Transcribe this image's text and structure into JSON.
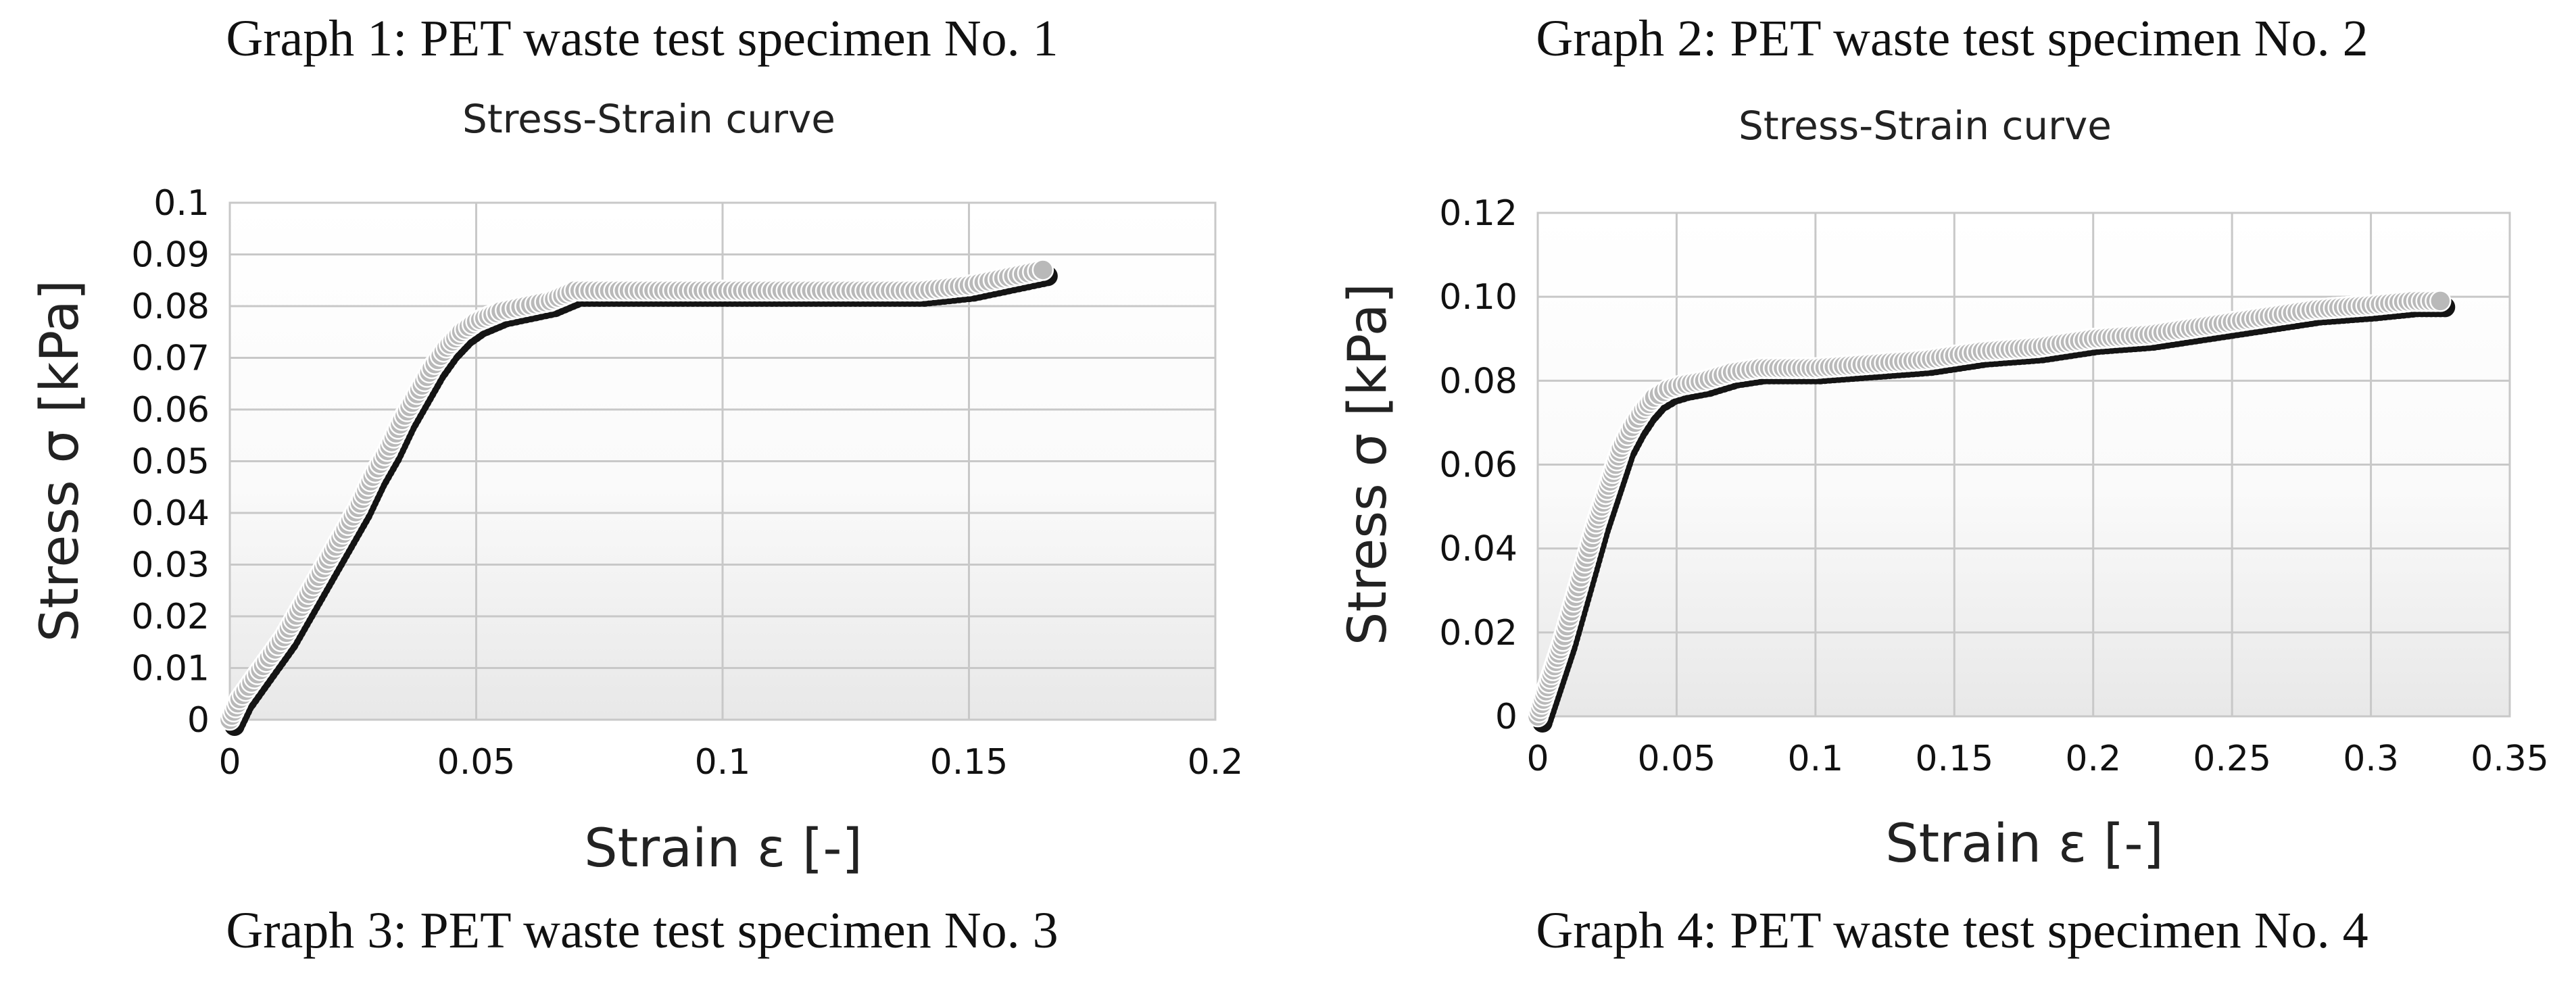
{
  "captions": {
    "graph1": "Graph 1: PET waste test specimen No. 1",
    "graph2": "Graph 2: PET waste test specimen No. 2",
    "graph3": "Graph 3: PET waste test specimen No. 3",
    "graph4": "Graph 4: PET waste test specimen No. 4"
  },
  "chart_data": [
    {
      "type": "scatter",
      "title": "Stress-Strain curve",
      "xlabel": "Strain ε [-]",
      "ylabel": "Stress σ [kPa]",
      "xlim": [
        0,
        0.2
      ],
      "ylim": [
        0,
        0.1
      ],
      "x_ticks": [
        "0",
        "0.05",
        "0.1",
        "0.15",
        "0.2"
      ],
      "y_ticks": [
        "0",
        "0.01",
        "0.02",
        "0.03",
        "0.04",
        "0.05",
        "0.06",
        "0.07",
        "0.08",
        "0.09",
        "0.1"
      ],
      "grid": true,
      "series": [
        {
          "points": [
            [
              0,
              0
            ],
            [
              0.002,
              0.004
            ],
            [
              0.005,
              0.008
            ],
            [
              0.008,
              0.012
            ],
            [
              0.011,
              0.016
            ],
            [
              0.014,
              0.021
            ],
            [
              0.017,
              0.026
            ],
            [
              0.02,
              0.031
            ],
            [
              0.023,
              0.036
            ],
            [
              0.026,
              0.041
            ],
            [
              0.029,
              0.047
            ],
            [
              0.032,
              0.052
            ],
            [
              0.035,
              0.058
            ],
            [
              0.038,
              0.063
            ],
            [
              0.041,
              0.068
            ],
            [
              0.044,
              0.072
            ],
            [
              0.047,
              0.075
            ],
            [
              0.05,
              0.077
            ],
            [
              0.055,
              0.079
            ],
            [
              0.06,
              0.08
            ],
            [
              0.065,
              0.081
            ],
            [
              0.07,
              0.083
            ],
            [
              0.08,
              0.083
            ],
            [
              0.09,
              0.083
            ],
            [
              0.1,
              0.083
            ],
            [
              0.11,
              0.083
            ],
            [
              0.12,
              0.083
            ],
            [
              0.13,
              0.083
            ],
            [
              0.14,
              0.083
            ],
            [
              0.15,
              0.084
            ],
            [
              0.155,
              0.085
            ],
            [
              0.16,
              0.086
            ],
            [
              0.165,
              0.087
            ]
          ]
        }
      ]
    },
    {
      "type": "scatter",
      "title": "Stress-Strain curve",
      "xlabel": "Strain ε [-]",
      "ylabel": "Stress σ [kPa]",
      "xlim": [
        0,
        0.35
      ],
      "ylim": [
        0,
        0.12
      ],
      "x_ticks": [
        "0",
        "0.05",
        "0.1",
        "0.15",
        "0.2",
        "0.25",
        "0.3",
        "0.35"
      ],
      "y_ticks": [
        "0",
        "0.02",
        "0.04",
        "0.06",
        "0.08",
        "0.10",
        "0.12"
      ],
      "grid": true,
      "series": [
        {
          "points": [
            [
              0,
              0
            ],
            [
              0.003,
              0.006
            ],
            [
              0.006,
              0.012
            ],
            [
              0.009,
              0.018
            ],
            [
              0.012,
              0.025
            ],
            [
              0.015,
              0.032
            ],
            [
              0.018,
              0.039
            ],
            [
              0.021,
              0.046
            ],
            [
              0.024,
              0.052
            ],
            [
              0.027,
              0.058
            ],
            [
              0.03,
              0.064
            ],
            [
              0.034,
              0.069
            ],
            [
              0.038,
              0.073
            ],
            [
              0.042,
              0.076
            ],
            [
              0.047,
              0.078
            ],
            [
              0.052,
              0.079
            ],
            [
              0.06,
              0.08
            ],
            [
              0.07,
              0.082
            ],
            [
              0.08,
              0.083
            ],
            [
              0.09,
              0.083
            ],
            [
              0.1,
              0.083
            ],
            [
              0.12,
              0.084
            ],
            [
              0.14,
              0.085
            ],
            [
              0.16,
              0.087
            ],
            [
              0.18,
              0.088
            ],
            [
              0.2,
              0.09
            ],
            [
              0.22,
              0.091
            ],
            [
              0.24,
              0.093
            ],
            [
              0.26,
              0.095
            ],
            [
              0.28,
              0.097
            ],
            [
              0.3,
              0.098
            ],
            [
              0.315,
              0.099
            ],
            [
              0.325,
              0.099
            ]
          ]
        }
      ]
    }
  ]
}
